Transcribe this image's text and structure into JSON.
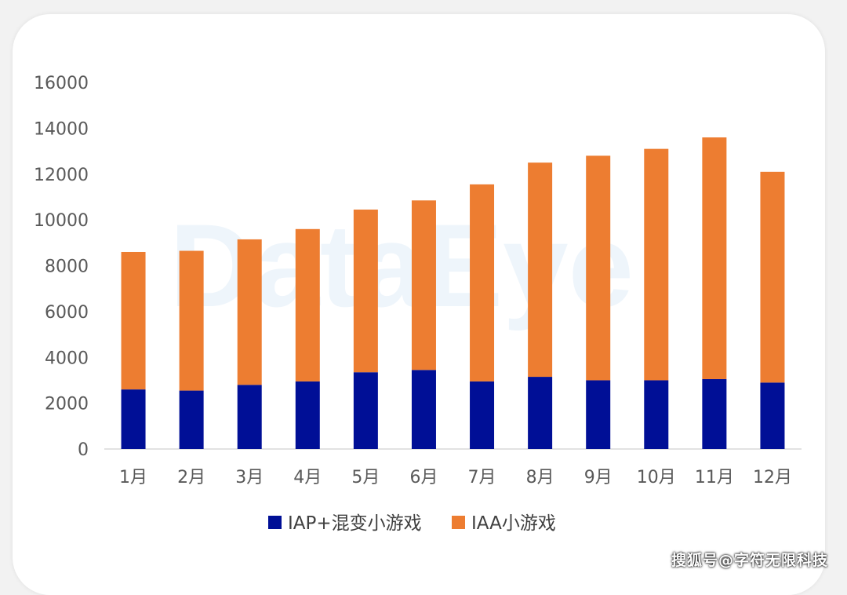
{
  "chart_data": {
    "type": "bar",
    "stacked": true,
    "title": "",
    "xlabel": "",
    "ylabel": "",
    "ylim": [
      0,
      16000
    ],
    "yticks": [
      0,
      2000,
      4000,
      6000,
      8000,
      10000,
      12000,
      14000,
      16000
    ],
    "categories": [
      "1月",
      "2月",
      "3月",
      "4月",
      "5月",
      "6月",
      "7月",
      "8月",
      "9月",
      "10月",
      "11月",
      "12月"
    ],
    "series": [
      {
        "name": "IAP+混变小游戏",
        "color": "#000f96",
        "values": [
          2600,
          2550,
          2800,
          2950,
          3350,
          3450,
          2950,
          3150,
          3000,
          3000,
          3050,
          2900
        ]
      },
      {
        "name": "IAA小游戏",
        "color": "#ed7d31",
        "values": [
          6000,
          6100,
          6350,
          6650,
          7100,
          7400,
          8600,
          9350,
          9800,
          10100,
          10550,
          9200
        ]
      }
    ],
    "legend_position": "bottom-center",
    "grid": false
  },
  "background_watermark": "DataEye",
  "source_watermark": "搜狐号@字符无限科技"
}
